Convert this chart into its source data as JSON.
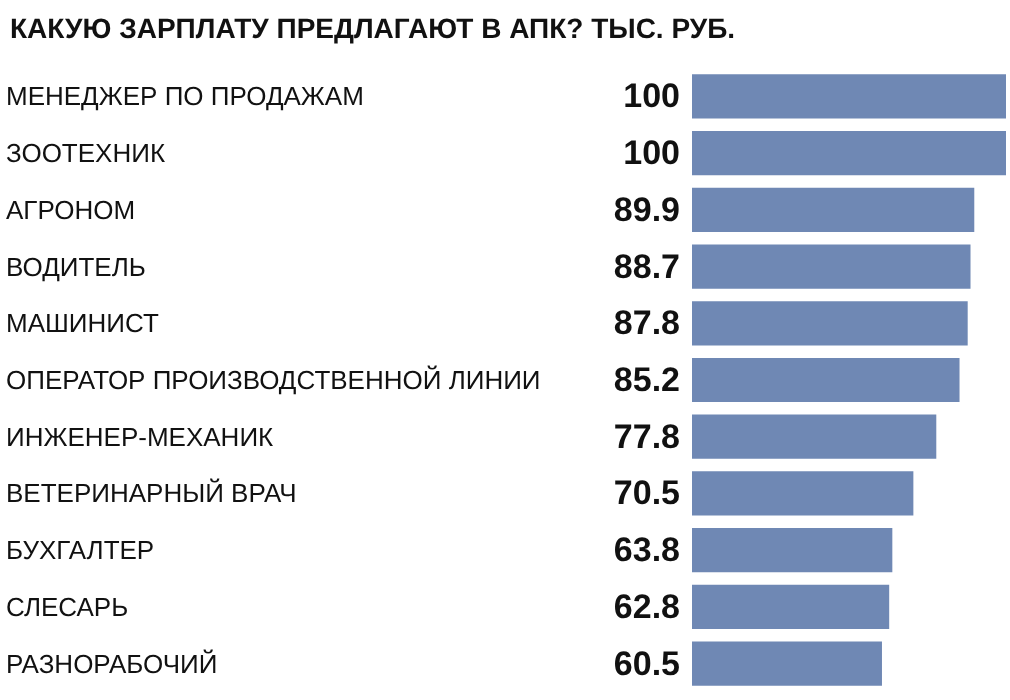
{
  "chart_data": {
    "type": "bar",
    "orientation": "horizontal",
    "title": "КАКУЮ ЗАРПЛАТУ ПРЕДЛАГАЮТ В АПК? ТЫС. РУБ.",
    "categories": [
      "МЕНЕДЖЕР ПО ПРОДАЖАМ",
      "ЗООТЕХНИК",
      "АГРОНОМ",
      "ВОДИТЕЛЬ",
      "МАШИНИСТ",
      "ОПЕРАТОР ПРОИЗВОДСТВЕННОЙ ЛИНИИ",
      "ИНЖЕНЕР-МЕХАНИК",
      "ВЕТЕРИНАРНЫЙ ВРАЧ",
      "БУХГАЛТЕР",
      "СЛЕСАРЬ",
      "РАЗНОРАБОЧИЙ"
    ],
    "values": [
      100,
      100,
      89.9,
      88.7,
      87.8,
      85.2,
      77.8,
      70.5,
      63.8,
      62.8,
      60.5
    ],
    "color": "#6f88b4",
    "data_labels": true
  }
}
